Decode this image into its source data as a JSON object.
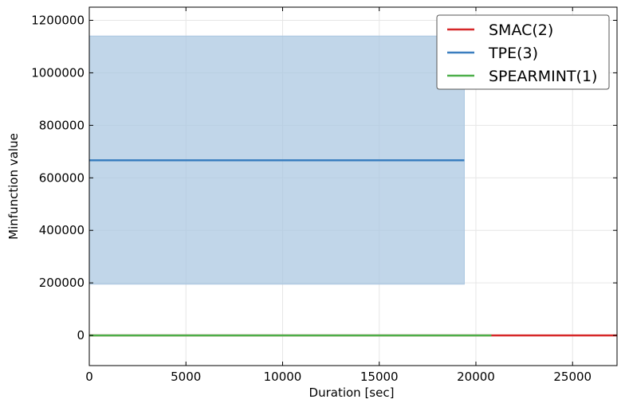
{
  "chart_data": {
    "type": "line",
    "xlabel": "Duration [sec]",
    "ylabel": "Minfunction value",
    "xlim": [
      0,
      27300
    ],
    "ylim": [
      -115000,
      1250000
    ],
    "xticks": [
      0,
      5000,
      10000,
      15000,
      20000,
      25000
    ],
    "xtick_labels": [
      "0",
      "5000",
      "10000",
      "15000",
      "20000",
      "25000"
    ],
    "yticks": [
      0,
      200000,
      400000,
      600000,
      800000,
      1000000,
      1200000
    ],
    "ytick_labels": [
      "0",
      "200000",
      "400000",
      "600000",
      "800000",
      "1000000",
      "1200000"
    ],
    "grid": true,
    "legend_position": "top-right",
    "series": [
      {
        "name": "SMAC(2)",
        "color": "#d62728",
        "x": [
          0,
          27300
        ],
        "y": [
          0,
          0
        ]
      },
      {
        "name": "TPE(3)",
        "color": "#3a7ebf",
        "x": [
          0,
          19400
        ],
        "y": [
          667000,
          667000
        ],
        "band_lower": [
          195000,
          195000
        ],
        "band_upper": [
          1140000,
          1140000
        ],
        "band_color": "#a9c6e0"
      },
      {
        "name": "SPEARMINT(1)",
        "color": "#4daf4a",
        "x": [
          0,
          20800
        ],
        "y": [
          0,
          0
        ]
      }
    ]
  }
}
